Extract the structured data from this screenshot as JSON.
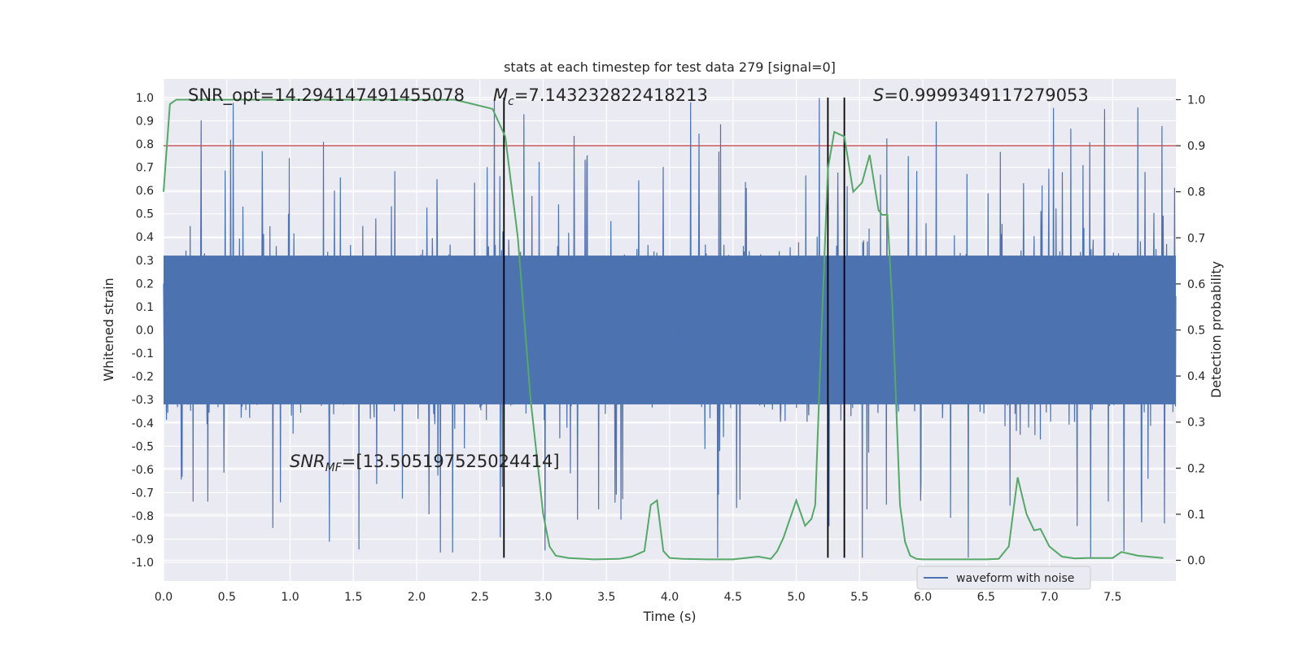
{
  "chart_data": {
    "type": "line",
    "title": "stats at each timestep for test data 279 [signal=0]",
    "xlabel": "Time (s)",
    "ylabel": "Whitened strain",
    "ylabel_right": "Detection probability",
    "xlim": [
      0.0,
      8.0
    ],
    "ylim": [
      -1.08,
      1.08
    ],
    "ylim_right": [
      -0.045,
      1.045
    ],
    "x_ticks": [
      "0.0",
      "0.5",
      "1.0",
      "1.5",
      "2.0",
      "2.5",
      "3.0",
      "3.5",
      "4.0",
      "4.5",
      "5.0",
      "5.5",
      "6.0",
      "6.5",
      "7.0",
      "7.5"
    ],
    "y_ticks": [
      "1.0",
      "0.9",
      "0.8",
      "0.7",
      "0.6",
      "0.5",
      "0.4",
      "0.3",
      "0.2",
      "0.1",
      "0.0",
      "-0.1",
      "-0.2",
      "-0.3",
      "-0.4",
      "-0.5",
      "-0.6",
      "-0.7",
      "-0.8",
      "-0.9",
      "-1.0"
    ],
    "y_ticks_right": [
      "1.0",
      "0.9",
      "0.8",
      "0.7",
      "0.6",
      "0.5",
      "0.4",
      "0.3",
      "0.2",
      "0.1",
      "0.0"
    ],
    "grid": true,
    "legend": {
      "position": "lower-right",
      "entries": [
        "waveform with noise"
      ]
    },
    "threshold_line": {
      "y": 0.9,
      "axis": "right",
      "color": "#c44e52"
    },
    "vertical_lines": [
      {
        "x": 2.69,
        "y_range": [
          -0.98,
          1.0
        ]
      },
      {
        "x": 5.25,
        "y_range": [
          -0.98,
          1.0
        ]
      },
      {
        "x": 5.38,
        "y_range": [
          -0.98,
          1.0
        ]
      }
    ],
    "series": [
      {
        "name": "waveform with noise",
        "axis": "left",
        "color": "#4c72b0",
        "style": "noise",
        "typical_amplitude": 0.32,
        "max_amplitude": 1.0,
        "min_value": -0.98,
        "note": "dense whitened strain noise, approximately 2048 Hz sampling over 0–8 s"
      },
      {
        "name": "detection probability",
        "axis": "right",
        "color": "#55a868",
        "x": [
          0.0,
          0.05,
          0.1,
          0.2,
          0.5,
          1.0,
          1.5,
          2.0,
          2.3,
          2.45,
          2.6,
          2.7,
          2.8,
          2.9,
          3.0,
          3.05,
          3.1,
          3.2,
          3.4,
          3.6,
          3.7,
          3.8,
          3.85,
          3.9,
          3.95,
          4.0,
          4.1,
          4.3,
          4.5,
          4.7,
          4.8,
          4.85,
          4.9,
          5.0,
          5.07,
          5.12,
          5.15,
          5.2,
          5.25,
          5.3,
          5.38,
          5.45,
          5.52,
          5.58,
          5.65,
          5.68,
          5.72,
          5.76,
          5.82,
          5.86,
          5.9,
          5.95,
          6.0,
          6.2,
          6.5,
          6.6,
          6.68,
          6.75,
          6.82,
          6.88,
          6.93,
          7.0,
          7.1,
          7.2,
          7.3,
          7.5,
          7.57,
          7.7,
          7.9
        ],
        "y": [
          0.8,
          0.99,
          1.0,
          1.0,
          1.0,
          1.0,
          1.0,
          1.0,
          1.0,
          0.99,
          0.98,
          0.92,
          0.7,
          0.35,
          0.1,
          0.03,
          0.01,
          0.005,
          0.002,
          0.003,
          0.008,
          0.02,
          0.12,
          0.13,
          0.02,
          0.005,
          0.003,
          0.002,
          0.002,
          0.008,
          0.003,
          0.02,
          0.05,
          0.13,
          0.075,
          0.09,
          0.12,
          0.5,
          0.85,
          0.93,
          0.92,
          0.8,
          0.82,
          0.88,
          0.76,
          0.75,
          0.75,
          0.55,
          0.12,
          0.04,
          0.01,
          0.003,
          0.002,
          0.002,
          0.002,
          0.003,
          0.03,
          0.18,
          0.1,
          0.065,
          0.068,
          0.03,
          0.008,
          0.004,
          0.005,
          0.005,
          0.018,
          0.01,
          0.005
        ]
      }
    ],
    "annotations": [
      {
        "id": "snr_opt",
        "text": "SNR_opt=14.294147491455078"
      },
      {
        "id": "mc",
        "symbol": "M",
        "subscript": "c",
        "value_text": "=7.143232822418213"
      },
      {
        "id": "s_stat",
        "symbol": "S",
        "value_text": "=0.9999349117279053"
      },
      {
        "id": "snr_mf",
        "symbol": "SNR",
        "subscript": "MF",
        "value_text": "=[13.505197525024414]"
      }
    ]
  }
}
